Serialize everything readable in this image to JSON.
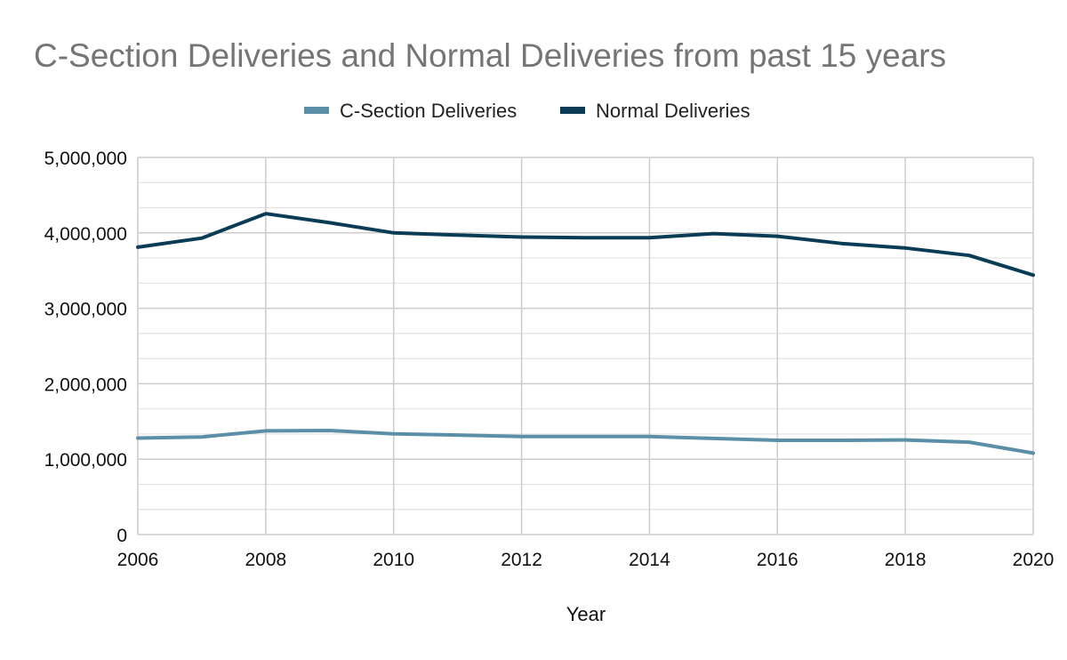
{
  "chart_data": {
    "type": "line",
    "title": "C-Section Deliveries and Normal Deliveries from past 15 years",
    "xlabel": "Year",
    "ylabel": "",
    "x": [
      2006,
      2007,
      2008,
      2009,
      2010,
      2011,
      2012,
      2013,
      2014,
      2015,
      2016,
      2017,
      2018,
      2019,
      2020
    ],
    "x_ticks": [
      "2006",
      "2008",
      "2010",
      "2012",
      "2014",
      "2016",
      "2018",
      "2020"
    ],
    "y_ticks": [
      "0",
      "1,000,000",
      "2,000,000",
      "3,000,000",
      "4,000,000",
      "5,000,000"
    ],
    "xlim": [
      2006,
      2020
    ],
    "ylim": [
      0,
      5000000
    ],
    "grid": true,
    "legend_position": "top-center",
    "series": [
      {
        "name": "C-Section Deliveries",
        "color": "#5b8fa8",
        "values": [
          1280000,
          1295000,
          1375000,
          1380000,
          1335000,
          1320000,
          1300000,
          1300000,
          1300000,
          1275000,
          1250000,
          1250000,
          1255000,
          1225000,
          1080000
        ]
      },
      {
        "name": "Normal Deliveries",
        "color": "#0b3c55",
        "values": [
          3810000,
          3930000,
          4255000,
          4135000,
          4000000,
          3970000,
          3945000,
          3935000,
          3935000,
          3990000,
          3955000,
          3860000,
          3800000,
          3700000,
          3440000
        ]
      }
    ]
  }
}
